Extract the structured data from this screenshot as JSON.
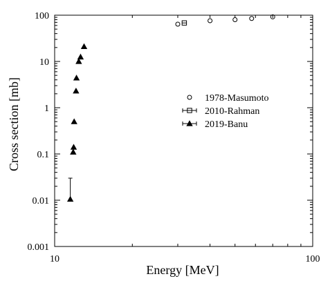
{
  "chart_data": {
    "type": "scatter",
    "xlabel": "Energy [MeV]",
    "ylabel": "Cross section [mb]",
    "x_scale": "log",
    "y_scale": "log",
    "xlim": [
      10,
      100
    ],
    "ylim": [
      0.001,
      100
    ],
    "x_ticks": [
      "10",
      "100"
    ],
    "y_ticks": [
      "0.001",
      "0.01",
      "0.1",
      "1",
      "10",
      "100"
    ],
    "legend_position": "right-center",
    "series": [
      {
        "name": "1978-Masumoto",
        "marker": "circle",
        "points": [
          {
            "x": 30.0,
            "y": 64
          },
          {
            "x": 40.0,
            "y": 76
          },
          {
            "x": 50.0,
            "y": 80
          },
          {
            "x": 58.0,
            "y": 85
          },
          {
            "x": 70.0,
            "y": 92
          }
        ]
      },
      {
        "name": "2010-Rahman",
        "marker": "square",
        "points": [
          {
            "x": 31.8,
            "y": 68
          }
        ]
      },
      {
        "name": "2019-Banu",
        "marker": "triangle",
        "points": [
          {
            "x": 11.5,
            "y": 0.0105,
            "y_err_low": 0.0,
            "y_err_high": 0.0195
          },
          {
            "x": 11.8,
            "y": 0.11
          },
          {
            "x": 11.85,
            "y": 0.14
          },
          {
            "x": 11.9,
            "y": 0.5
          },
          {
            "x": 12.1,
            "y": 2.3
          },
          {
            "x": 12.15,
            "y": 4.4
          },
          {
            "x": 12.4,
            "y": 10
          },
          {
            "x": 12.6,
            "y": 12.5
          },
          {
            "x": 13.0,
            "y": 21
          }
        ]
      }
    ]
  }
}
